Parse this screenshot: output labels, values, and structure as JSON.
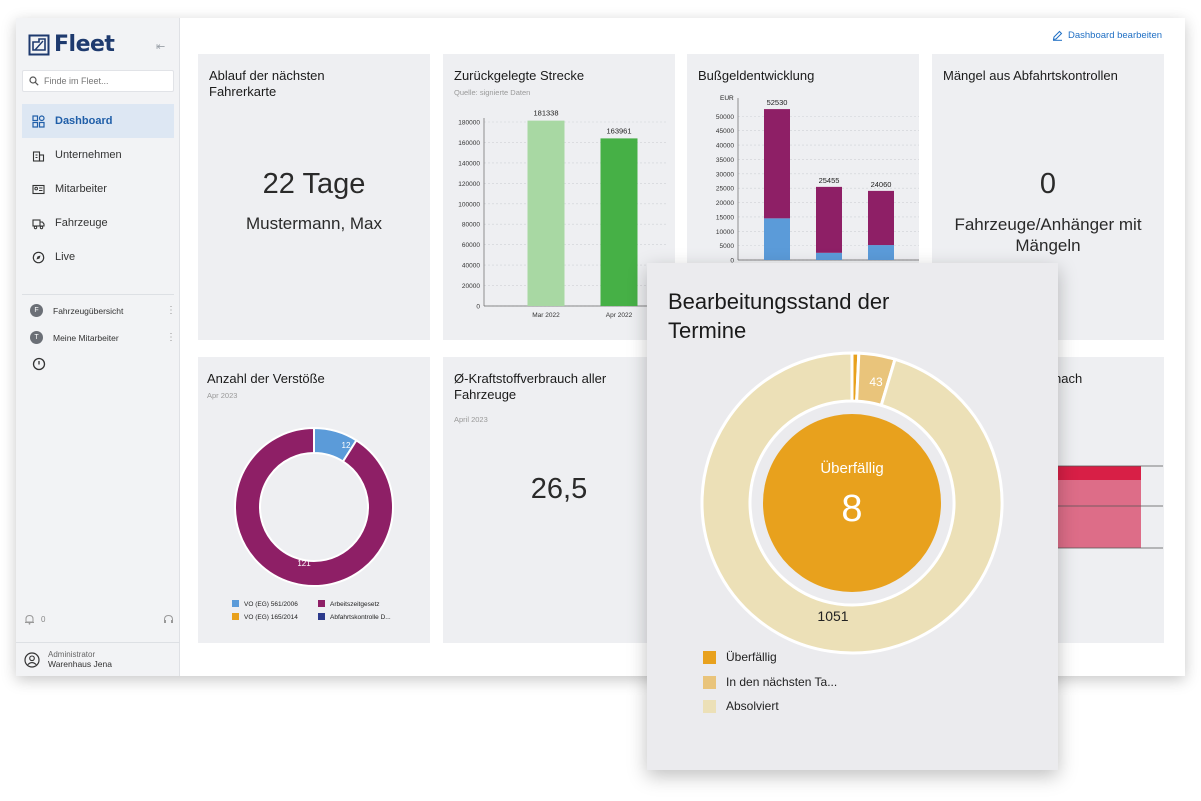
{
  "sidebar": {
    "logo_text": "Fleet",
    "search_placeholder": "Finde im Fleet...",
    "nav": [
      {
        "label": "Dashboard",
        "icon": "dashboard-icon",
        "active": true
      },
      {
        "label": "Unternehmen",
        "icon": "building-icon"
      },
      {
        "label": "Mitarbeiter",
        "icon": "id-card-icon"
      },
      {
        "label": "Fahrzeuge",
        "icon": "truck-icon"
      },
      {
        "label": "Live",
        "icon": "compass-icon"
      }
    ],
    "favorites": [
      {
        "initial": "F",
        "label": "Fahrzeugübersicht"
      },
      {
        "initial": "T",
        "label": "Meine Mitarbeiter"
      }
    ],
    "notification_count": "0",
    "user_role": "Administrator",
    "user_name": "Warenhaus Jena"
  },
  "header": {
    "edit_label": "Dashboard bearbeiten"
  },
  "cards": {
    "driver_card": {
      "title": "Ablauf der nächsten Fahrerkarte",
      "value": "22 Tage",
      "name": "Mustermann, Max"
    },
    "distance": {
      "title": "Zurückgelegte Strecke",
      "subtitle": "Quelle: signierte Daten"
    },
    "fines": {
      "title": "Bußgeldentwicklung"
    },
    "defects": {
      "title": "Mängel aus Abfahrtskontrollen",
      "value": "0",
      "label": "Fahrzeuge/Anhänger mit Mängeln"
    },
    "violations": {
      "title": "Anzahl der Verstöße",
      "subtitle": "Apr 2023"
    },
    "fuel": {
      "title": "Ø-Kraftstoffverbrauch aller Fahrzeuge",
      "subtitle": "April 2023",
      "value": "26,5"
    },
    "hidden": {
      "title_fragment": "nach"
    }
  },
  "overlay": {
    "title": "Bearbeitungsstand der Termine",
    "center_label": "Überfällig",
    "center_value": "8"
  },
  "colors": {
    "accent": "#1f5ea8",
    "green_light": "#a8d8a3",
    "green": "#46b046",
    "purple": "#8e1f66",
    "blue": "#5b9bd9",
    "orange": "#e8a11d",
    "tan": "#e9c47b",
    "beige": "#ece0b7",
    "red": "#d81f46",
    "pink": "#dd6d88"
  },
  "chart_data": [
    {
      "type": "bar",
      "id": "distance",
      "categories": [
        "Mar 2022",
        "Apr 2022"
      ],
      "values": [
        181338,
        163961
      ],
      "ylim": [
        0,
        180000
      ],
      "yticks": [
        0,
        20000,
        40000,
        60000,
        80000,
        100000,
        120000,
        140000,
        160000,
        180000
      ],
      "grid": true
    },
    {
      "type": "bar",
      "id": "fines",
      "stacked": true,
      "ylabel": "EUR",
      "series": [
        {
          "values": [
            14500,
            2500,
            5200
          ]
        },
        {
          "values": [
            38030,
            22955,
            18860
          ]
        }
      ],
      "totals": [
        52530,
        25455,
        24060
      ],
      "ylim": [
        0,
        55000
      ],
      "yticks": [
        0,
        5000,
        10000,
        15000,
        20000,
        25000,
        30000,
        35000,
        40000,
        45000,
        50000
      ]
    },
    {
      "type": "pie",
      "id": "violations",
      "donut": true,
      "slices": [
        {
          "name": "VO (EG) 561/2006",
          "value": 12
        },
        {
          "name": "VO (EG) 165/2014",
          "value": 0
        },
        {
          "name": "Arbeitszeitgesetz",
          "value": 121
        },
        {
          "name": "Abfahrtskontrolle D...",
          "value": 0
        }
      ],
      "labels": [
        "12",
        "121"
      ]
    },
    {
      "type": "pie",
      "id": "appointments",
      "donut": true,
      "slices": [
        {
          "name": "Überfällig",
          "value": 8
        },
        {
          "name": "In den nächsten Ta...",
          "value": 43
        },
        {
          "name": "Absolviert",
          "value": 1051
        }
      ],
      "labels": [
        "43",
        "1051"
      ]
    }
  ]
}
